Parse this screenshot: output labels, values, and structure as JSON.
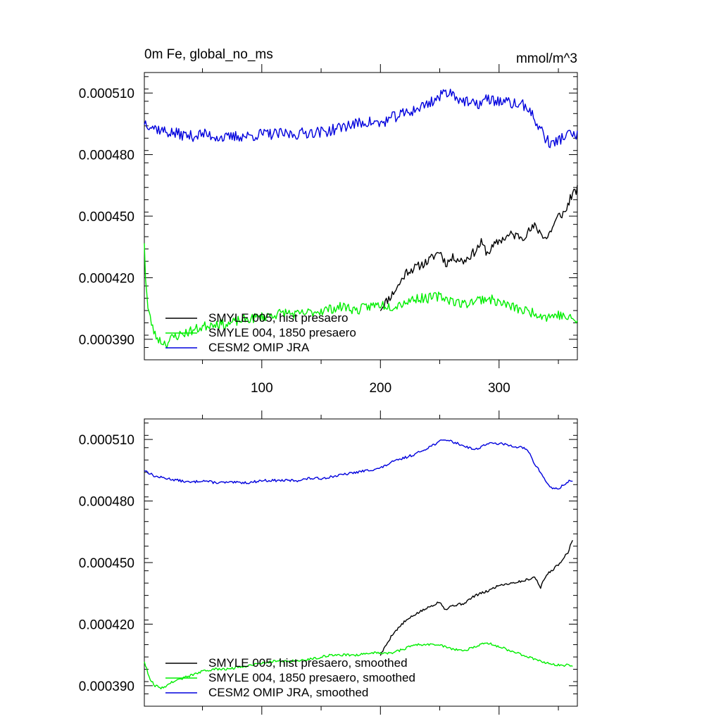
{
  "colors": {
    "hist": "#000000",
    "y1850": "#00ee00",
    "omip": "#0000dd"
  },
  "chart_data": [
    {
      "type": "line",
      "title": "0m Fe, global_no_ms",
      "units": "mmol/m^3",
      "xlim": [
        1,
        366
      ],
      "ylim": [
        0.00038,
        0.00052
      ],
      "xticks": [
        100,
        200,
        300
      ],
      "xtick_labels": [
        "100",
        "200",
        "300"
      ],
      "show_x_tick_labels": true,
      "yticks": [
        0.00039,
        0.00042,
        0.00045,
        0.00048,
        0.00051
      ],
      "ytick_labels": [
        "0.000390",
        "0.000420",
        "0.000450",
        "0.000480",
        "0.000510"
      ],
      "grid": false,
      "legend_position": "bottom-left",
      "series": [
        {
          "name": "SMYLE 005, hist presaero",
          "color_key": "hist",
          "noise": 2.2e-06,
          "seed": 11,
          "x": [
            200,
            210,
            215,
            222,
            230,
            240,
            250,
            255,
            262,
            270,
            280,
            285,
            290,
            300,
            310,
            320,
            330,
            340,
            350,
            356,
            360,
            366
          ],
          "y": [
            0.000405,
            0.000412,
            0.000416,
            0.000423,
            0.000425,
            0.000428,
            0.000433,
            0.000427,
            0.00043,
            0.000428,
            0.000433,
            0.000437,
            0.000432,
            0.000438,
            0.000441,
            0.00044,
            0.000445,
            0.000439,
            0.00045,
            0.000452,
            0.000459,
            0.000463
          ]
        },
        {
          "name": "SMYLE 004, 1850 presaero",
          "color_key": "y1850",
          "noise": 2.4e-06,
          "seed": 23,
          "x": [
            1,
            2,
            4,
            6,
            10,
            15,
            20,
            25,
            30,
            40,
            50,
            60,
            70,
            80,
            90,
            100,
            110,
            120,
            130,
            140,
            150,
            160,
            170,
            180,
            190,
            200,
            210,
            220,
            230,
            240,
            250,
            260,
            270,
            280,
            290,
            300,
            310,
            320,
            330,
            340,
            350,
            360,
            366
          ],
          "y": [
            0.000438,
            0.00042,
            0.000405,
            0.0004,
            0.000392,
            0.000389,
            0.000388,
            0.000391,
            0.000392,
            0.000394,
            0.000396,
            0.000398,
            0.000397,
            0.000399,
            0.0004,
            0.000401,
            0.000402,
            0.000403,
            0.000402,
            0.000403,
            0.000404,
            0.000405,
            0.000406,
            0.000404,
            0.000406,
            0.000407,
            0.000406,
            0.000408,
            0.00041,
            0.00041,
            0.000411,
            0.000409,
            0.000407,
            0.000409,
            0.00041,
            0.000408,
            0.000406,
            0.000404,
            0.000403,
            0.000401,
            0.000402,
            0.0004,
            0.000399
          ]
        },
        {
          "name": "CESM2 OMIP JRA",
          "color_key": "omip",
          "noise": 2.8e-06,
          "seed": 37,
          "x": [
            1,
            10,
            20,
            30,
            40,
            50,
            60,
            70,
            80,
            90,
            100,
            110,
            120,
            130,
            140,
            150,
            160,
            170,
            180,
            190,
            200,
            210,
            220,
            230,
            240,
            250,
            255,
            260,
            270,
            280,
            290,
            300,
            310,
            320,
            325,
            330,
            335,
            340,
            345,
            350,
            355,
            360,
            366
          ],
          "y": [
            0.000496,
            0.000493,
            0.000491,
            0.00049,
            0.000489,
            0.00049,
            0.000489,
            0.000488,
            0.000489,
            0.000489,
            0.00049,
            0.00049,
            0.00049,
            0.00049,
            0.000491,
            0.000491,
            0.000492,
            0.000494,
            0.000495,
            0.000496,
            0.000495,
            0.000498,
            0.0005,
            0.000502,
            0.000505,
            0.000508,
            0.000511,
            0.00051,
            0.000506,
            0.000504,
            0.000507,
            0.000506,
            0.000505,
            0.000504,
            0.000503,
            0.000496,
            0.000493,
            0.000487,
            0.000485,
            0.000487,
            0.000489,
            0.00049,
            0.000489
          ]
        }
      ]
    },
    {
      "type": "line",
      "title": "",
      "units": "",
      "xlim": [
        1,
        366
      ],
      "ylim": [
        0.00038,
        0.00052
      ],
      "xticks": [
        100,
        200,
        300
      ],
      "xtick_labels": [
        "",
        "",
        ""
      ],
      "show_x_tick_labels": false,
      "yticks": [
        0.00039,
        0.00042,
        0.00045,
        0.00048,
        0.00051
      ],
      "ytick_labels": [
        "0.000390",
        "0.000420",
        "0.000450",
        "0.000480",
        "0.000510"
      ],
      "grid": false,
      "legend_position": "bottom-left",
      "series": [
        {
          "name": "SMYLE 005, hist presaero, smoothed",
          "color_key": "hist",
          "noise": 6e-07,
          "seed": 5,
          "x": [
            200,
            205,
            210,
            215,
            220,
            230,
            240,
            250,
            255,
            260,
            270,
            280,
            290,
            300,
            310,
            320,
            330,
            335,
            340,
            350,
            358,
            362
          ],
          "y": [
            0.000405,
            0.00041,
            0.000415,
            0.000418,
            0.000421,
            0.000425,
            0.000428,
            0.000431,
            0.000427,
            0.000429,
            0.00043,
            0.000434,
            0.000436,
            0.000439,
            0.00044,
            0.000441,
            0.000443,
            0.000438,
            0.000444,
            0.000449,
            0.000455,
            0.000461
          ]
        },
        {
          "name": "SMYLE 004, 1850 presaero, smoothed",
          "color_key": "y1850",
          "noise": 6e-07,
          "seed": 9,
          "x": [
            1,
            3,
            6,
            10,
            15,
            20,
            25,
            30,
            40,
            50,
            60,
            70,
            80,
            90,
            100,
            110,
            120,
            130,
            140,
            150,
            160,
            170,
            180,
            190,
            200,
            210,
            220,
            230,
            240,
            250,
            260,
            270,
            280,
            290,
            300,
            310,
            320,
            330,
            340,
            350,
            360,
            362
          ],
          "y": [
            0.000402,
            0.000398,
            0.000393,
            0.00039,
            0.000389,
            0.00039,
            0.000392,
            0.000393,
            0.000395,
            0.000397,
            0.000398,
            0.000398,
            0.000399,
            0.0004,
            0.000401,
            0.000402,
            0.000402,
            0.000402,
            0.000403,
            0.000404,
            0.000405,
            0.000405,
            0.000405,
            0.000406,
            0.000406,
            0.000406,
            0.000408,
            0.00041,
            0.00041,
            0.00041,
            0.000408,
            0.000407,
            0.000409,
            0.000411,
            0.000409,
            0.000407,
            0.000405,
            0.000403,
            0.000401,
            0.0004,
            0.0004,
            0.000399
          ]
        },
        {
          "name": "CESM2 OMIP JRA, smoothed",
          "color_key": "omip",
          "noise": 6e-07,
          "seed": 13,
          "x": [
            1,
            10,
            20,
            30,
            40,
            50,
            60,
            70,
            80,
            90,
            100,
            110,
            120,
            130,
            140,
            150,
            160,
            170,
            180,
            190,
            200,
            210,
            220,
            230,
            240,
            250,
            255,
            260,
            270,
            280,
            290,
            300,
            310,
            320,
            325,
            330,
            335,
            340,
            345,
            350,
            355,
            360,
            362
          ],
          "y": [
            0.000495,
            0.000492,
            0.000491,
            0.00049,
            0.000489,
            0.00049,
            0.000489,
            0.000489,
            0.000489,
            0.000489,
            0.00049,
            0.00049,
            0.00049,
            0.00049,
            0.000491,
            0.000491,
            0.000492,
            0.000493,
            0.000494,
            0.000495,
            0.000496,
            0.000499,
            0.000501,
            0.000503,
            0.000506,
            0.000509,
            0.00051,
            0.000509,
            0.000507,
            0.000505,
            0.000508,
            0.000508,
            0.000507,
            0.000506,
            0.000504,
            0.000498,
            0.000494,
            0.000489,
            0.000486,
            0.000486,
            0.000488,
            0.00049,
            0.00049
          ]
        }
      ]
    }
  ]
}
